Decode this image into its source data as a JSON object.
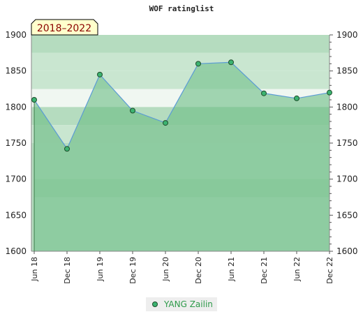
{
  "chart_data": {
    "type": "area",
    "title": "WOF ratinglist",
    "period_label": "2018–2022",
    "categories": [
      "Jun 18",
      "Dec 18",
      "Jun 19",
      "Dec 19",
      "Jun 20",
      "Dec 20",
      "Jun 21",
      "Dec 21",
      "Jun 22",
      "Dec 22"
    ],
    "series": [
      {
        "name": "YANG Zailin",
        "values": [
          1810,
          1742,
          1845,
          1795,
          1778,
          1860,
          1862,
          1819,
          1812,
          1820
        ]
      }
    ],
    "ylim": [
      1600,
      1900
    ],
    "yticks": [
      1600,
      1650,
      1700,
      1750,
      1800,
      1850,
      1900
    ],
    "y_axes": "left-and-right",
    "legend_position": "bottom-center",
    "colors": {
      "line": "#5b9bd5",
      "marker": "#3cb371",
      "area_fill": "#7dc594",
      "band_light": "#b5dcbf",
      "band_mid": "#c9e6d0",
      "band_pale": "#f0f7f1",
      "badge_bg": "#ffffcc"
    }
  }
}
